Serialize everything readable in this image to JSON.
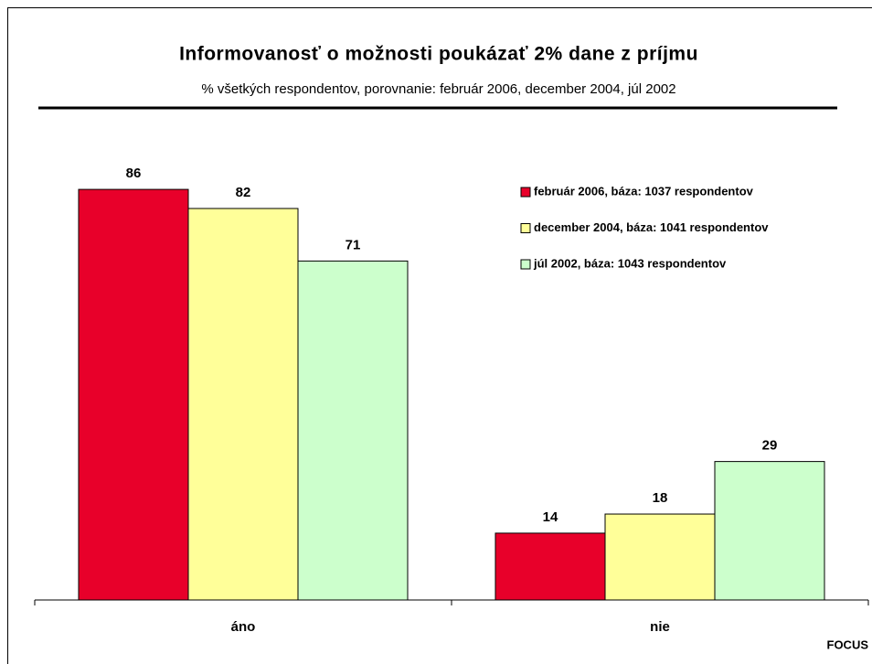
{
  "chart_data": {
    "type": "bar",
    "title": "Informovanosť o možnosti poukázať 2% dane z príjmu",
    "subtitle": "% všetkých respondentov, porovnanie: február 2006, december 2004, júl 2002",
    "source": "FOCUS",
    "categories": [
      "áno",
      "nie"
    ],
    "series": [
      {
        "name": "február 2006, báza: 1037 respondentov",
        "color": "#e8002a",
        "values": [
          86,
          14
        ]
      },
      {
        "name": "december 2004, báza: 1041 respondentov",
        "color": "#ffff99",
        "values": [
          82,
          18
        ]
      },
      {
        "name": "júl 2002, báza: 1043 respondentov",
        "color": "#ccffcc",
        "values": [
          71,
          29
        ]
      }
    ],
    "ylim": [
      0,
      100
    ],
    "legend": "upper right"
  }
}
